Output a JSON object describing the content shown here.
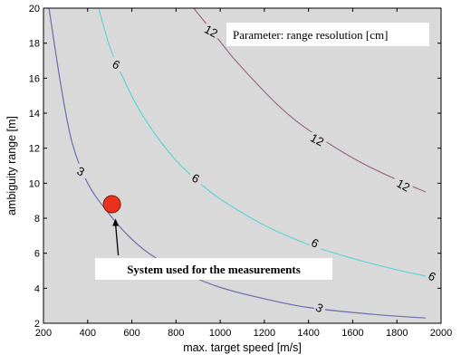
{
  "chart_data": {
    "type": "contour",
    "title": "",
    "xlabel": "max. target speed [m/s]",
    "ylabel": "ambiguity range [m]",
    "xlim": [
      200,
      2000
    ],
    "ylim": [
      2,
      20
    ],
    "x_ticks": [
      200,
      400,
      600,
      800,
      1000,
      1200,
      1400,
      1600,
      1800,
      2000
    ],
    "y_ticks": [
      2,
      4,
      6,
      8,
      10,
      12,
      14,
      16,
      18,
      20
    ],
    "grid": false,
    "background": "#d9d9d9",
    "legend_box": {
      "text": "Parameter: range resolution [cm]",
      "placement": "top-right"
    },
    "series": [
      {
        "name": "3",
        "color": "#6b6bb0",
        "points": [
          [
            225,
            20
          ],
          [
            280,
            15.5
          ],
          [
            330,
            12.3
          ],
          [
            400,
            10
          ],
          [
            500,
            8.2
          ],
          [
            600,
            6.8
          ],
          [
            700,
            5.8
          ],
          [
            850,
            4.8
          ],
          [
            1000,
            4.05
          ],
          [
            1200,
            3.4
          ],
          [
            1400,
            2.9
          ],
          [
            1700,
            2.5
          ],
          [
            1930,
            2.3
          ]
        ],
        "labels": [
          {
            "x": 370,
            "y": 10.7,
            "text": "3"
          },
          {
            "x": 1450,
            "y": 2.9,
            "text": "3"
          }
        ]
      },
      {
        "name": "6",
        "color": "#5fd3d8",
        "points": [
          [
            450,
            20
          ],
          [
            500,
            17.8
          ],
          [
            550,
            16.3
          ],
          [
            620,
            14.5
          ],
          [
            700,
            12.9
          ],
          [
            800,
            11.3
          ],
          [
            900,
            10.1
          ],
          [
            1000,
            9.1
          ],
          [
            1200,
            7.6
          ],
          [
            1400,
            6.5
          ],
          [
            1600,
            5.7
          ],
          [
            1800,
            5.05
          ],
          [
            1930,
            4.7
          ]
        ],
        "labels": [
          {
            "x": 530,
            "y": 16.8,
            "text": "6"
          },
          {
            "x": 890,
            "y": 10.3,
            "text": "6"
          },
          {
            "x": 1430,
            "y": 6.6,
            "text": "6"
          },
          {
            "x": 1960,
            "y": 4.7,
            "text": "6"
          }
        ]
      },
      {
        "name": "12",
        "color": "#9b6a88",
        "points": [
          [
            880,
            20
          ],
          [
            950,
            18.9
          ],
          [
            1050,
            17.3
          ],
          [
            1150,
            15.9
          ],
          [
            1250,
            14.6
          ],
          [
            1350,
            13.5
          ],
          [
            1500,
            12.2
          ],
          [
            1650,
            11.1
          ],
          [
            1800,
            10.2
          ],
          [
            1930,
            9.5
          ]
        ],
        "labels": [
          {
            "x": 960,
            "y": 18.7,
            "text": "12"
          },
          {
            "x": 1440,
            "y": 12.5,
            "text": "12"
          },
          {
            "x": 1830,
            "y": 9.9,
            "text": "12"
          }
        ]
      }
    ],
    "marker": {
      "x": 510,
      "y": 8.8,
      "color": "#e8321c"
    },
    "annotation": {
      "text": "System used  for the measurements",
      "arrow_to": [
        510,
        8.8
      ]
    }
  }
}
